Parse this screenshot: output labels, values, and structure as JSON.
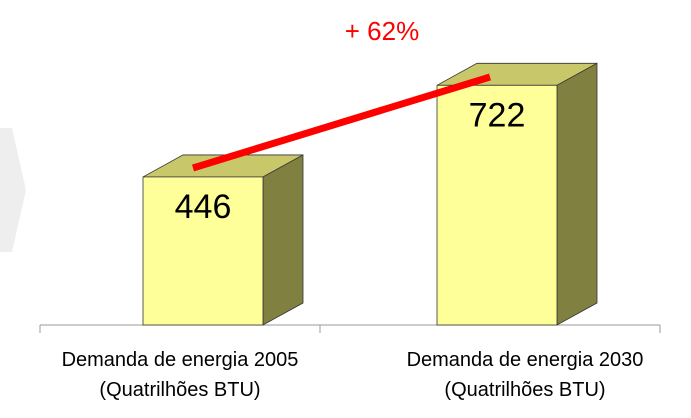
{
  "chart_data": {
    "type": "bar3d",
    "categories": [
      "Demanda de energia 2005\n(Quatrilhões BTU)",
      "Demanda de energia 2030\n(Quatrilhões BTU)"
    ],
    "values": [
      446,
      722
    ],
    "annotation": "+ 62%",
    "color": "#ffff99"
  }
}
